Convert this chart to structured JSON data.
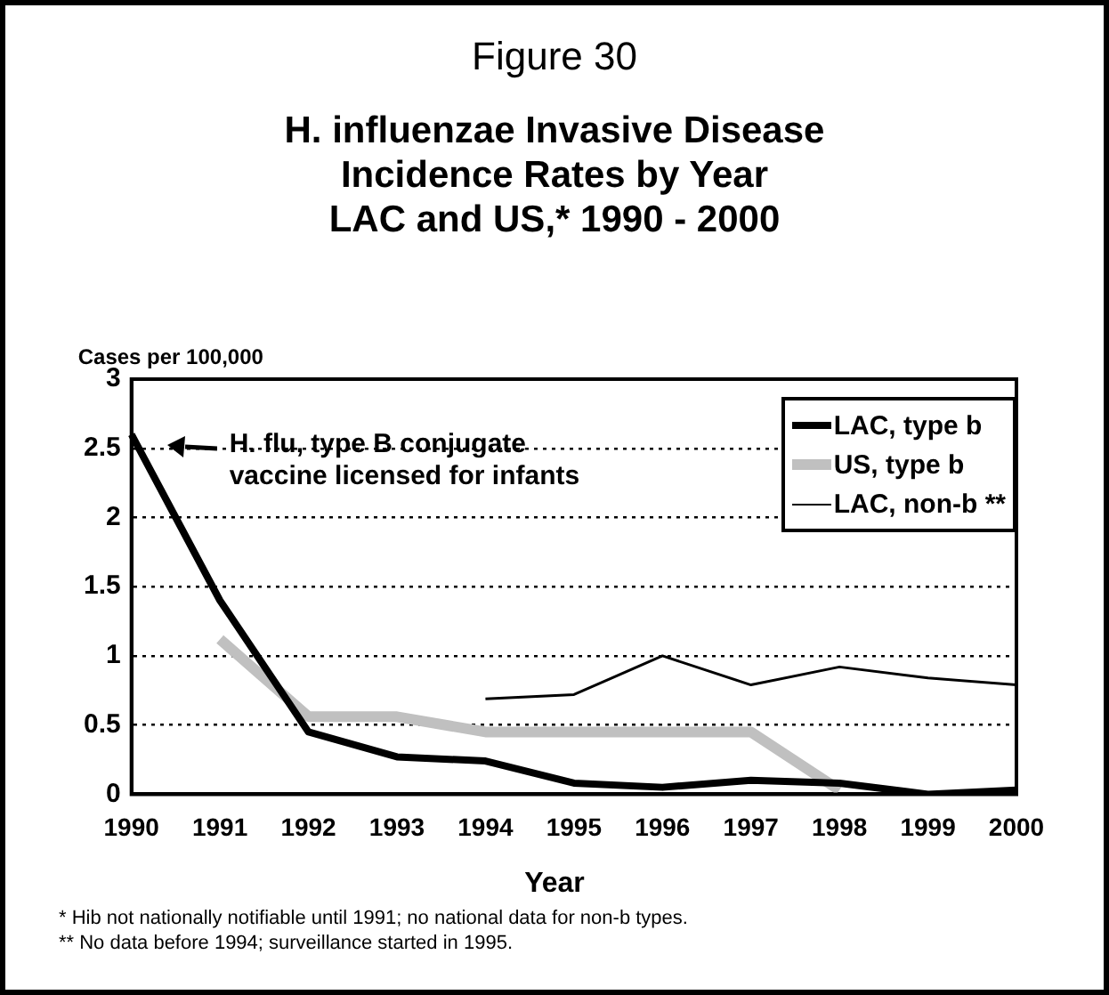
{
  "chart_data": {
    "type": "line",
    "title": "Figure 30",
    "subtitle": "H. influenzae Invasive Disease\nIncidence Rates by Year\nLAC and US,* 1990 - 2000",
    "xlabel": "Year",
    "ylabel": "Cases per 100,000",
    "categories": [
      "1990",
      "1991",
      "1992",
      "1993",
      "1994",
      "1995",
      "1996",
      "1997",
      "1998",
      "1999",
      "2000"
    ],
    "series": [
      {
        "name": "LAC, type b",
        "color": "#000000",
        "values": [
          2.6,
          1.4,
          0.45,
          0.27,
          0.24,
          0.08,
          0.05,
          0.1,
          0.08,
          0,
          0.03
        ]
      },
      {
        "name": "US, type b",
        "color": "#c0c0c0",
        "values": [
          null,
          1.12,
          0.56,
          0.56,
          0.45,
          0.45,
          0.45,
          0.45,
          0.03,
          null,
          null
        ]
      },
      {
        "name": "LAC, non-b **",
        "color": "#000000",
        "values": [
          null,
          null,
          null,
          null,
          0.69,
          0.72,
          1.0,
          0.79,
          0.92,
          0.84,
          0.79
        ]
      }
    ],
    "ylim": [
      0,
      3
    ],
    "yticks": [
      0,
      0.5,
      1,
      1.5,
      2,
      2.5,
      3
    ],
    "grid": "y",
    "legend": "top right",
    "marker": "none",
    "line_style": "solid",
    "annotations": [
      "H. flu, type B conjugate\nvaccine licensed for infants",
      "* Hib not nationally notifiable until 1991; no national data for non-b types.",
      "** No data before 1994; surveillance started in 1995."
    ]
  }
}
